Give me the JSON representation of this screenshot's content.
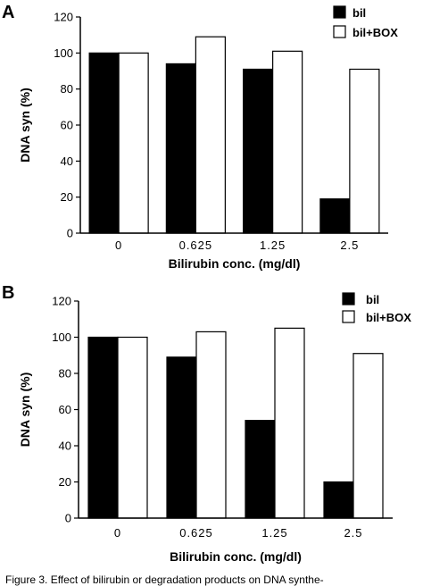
{
  "chart_data": [
    {
      "panel": "A",
      "type": "bar",
      "categories": [
        "0",
        "0.625",
        "1.25",
        "2.5"
      ],
      "series": [
        {
          "name": "bil",
          "values": [
            100,
            94,
            91,
            19
          ],
          "color": "#000000"
        },
        {
          "name": "bil+BOX",
          "values": [
            100,
            109,
            101,
            91
          ],
          "color": "#ffffff"
        }
      ],
      "xlabel": "Bilirubin conc. (mg/dl)",
      "ylabel": "DNA syn (%)",
      "ylim": [
        0,
        120
      ],
      "yticks": [
        "0",
        "20",
        "40",
        "60",
        "80",
        "100",
        "120"
      ],
      "legend_position": "top-right",
      "grid": false
    },
    {
      "panel": "B",
      "type": "bar",
      "categories": [
        "0",
        "0.625",
        "1.25",
        "2.5"
      ],
      "series": [
        {
          "name": "bil",
          "values": [
            100,
            89,
            54,
            20
          ],
          "color": "#000000"
        },
        {
          "name": "bil+BOX",
          "values": [
            100,
            103,
            105,
            91
          ],
          "color": "#ffffff"
        }
      ],
      "xlabel": "Bilirubin conc. (mg/dl)",
      "ylabel": "DNA syn (%)",
      "ylim": [
        0,
        120
      ],
      "yticks": [
        "0",
        "20",
        "40",
        "60",
        "80",
        "100",
        "120"
      ],
      "legend_position": "top-right",
      "grid": false
    }
  ],
  "caption": "Figure 3. Effect of bilirubin or degradation products on DNA synthe-"
}
